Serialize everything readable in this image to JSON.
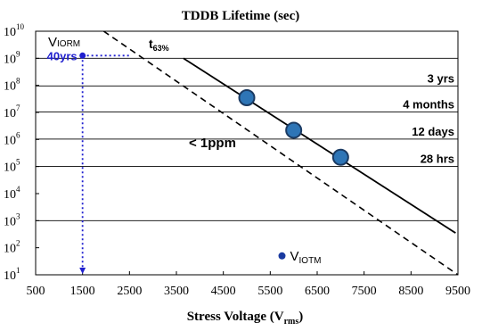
{
  "chart_data": {
    "type": "line",
    "title": "TDDB Lifetime  (sec)",
    "xlabel": {
      "main": "Stress Voltage (V",
      "sub": "rms",
      "close": ")"
    },
    "ylabel": "",
    "xlim": [
      500,
      9500
    ],
    "ylim_log10": [
      1,
      10
    ],
    "y_scale": "log",
    "x_ticks": [
      "500",
      "1500",
      "2500",
      "3500",
      "4500",
      "5500",
      "6500",
      "7500",
      "8500",
      "9500"
    ],
    "y_ticks": [
      {
        "base": "10",
        "exp": "1"
      },
      {
        "base": "10",
        "exp": "2"
      },
      {
        "base": "10",
        "exp": "3"
      },
      {
        "base": "10",
        "exp": "4"
      },
      {
        "base": "10",
        "exp": "5"
      },
      {
        "base": "10",
        "exp": "6"
      },
      {
        "base": "10",
        "exp": "7"
      },
      {
        "base": "10",
        "exp": "8"
      },
      {
        "base": "10",
        "exp": "9"
      },
      {
        "base": "10",
        "exp": "10"
      }
    ],
    "reference_lines": [
      {
        "label": "3 yrs",
        "y": 94608000
      },
      {
        "label": "4 months",
        "y": 10368000
      },
      {
        "label": "12 days",
        "y": 1036800
      },
      {
        "label": "28 hrs",
        "y": 100800
      },
      {
        "label": "",
        "y": 1000000000
      },
      {
        "label": "",
        "y": 1000
      }
    ],
    "series": [
      {
        "label_main": "t",
        "label_sub": "63%",
        "style": "solid",
        "x": [
          3650,
          9450
        ],
        "y": [
          1000000000,
          350
        ]
      },
      {
        "label": "< 1ppm",
        "style": "dashed",
        "x": [
          1950,
          9500
        ],
        "y": [
          10000000000,
          10
        ]
      }
    ],
    "points": {
      "x": [
        5000,
        6000,
        7000
      ],
      "y": [
        35000000,
        2200000,
        220000
      ],
      "color": "#2e75b6"
    },
    "viorm": {
      "label_main": "V",
      "label_sub": "IORM",
      "x": 1500,
      "y": 1260000000,
      "annotation": "40yrs",
      "color": "#1f1fcf"
    },
    "viotm": {
      "label_main": "V",
      "label_sub": "IOTM",
      "x": 5750,
      "y": 50,
      "color": "#1a3aa0"
    }
  }
}
